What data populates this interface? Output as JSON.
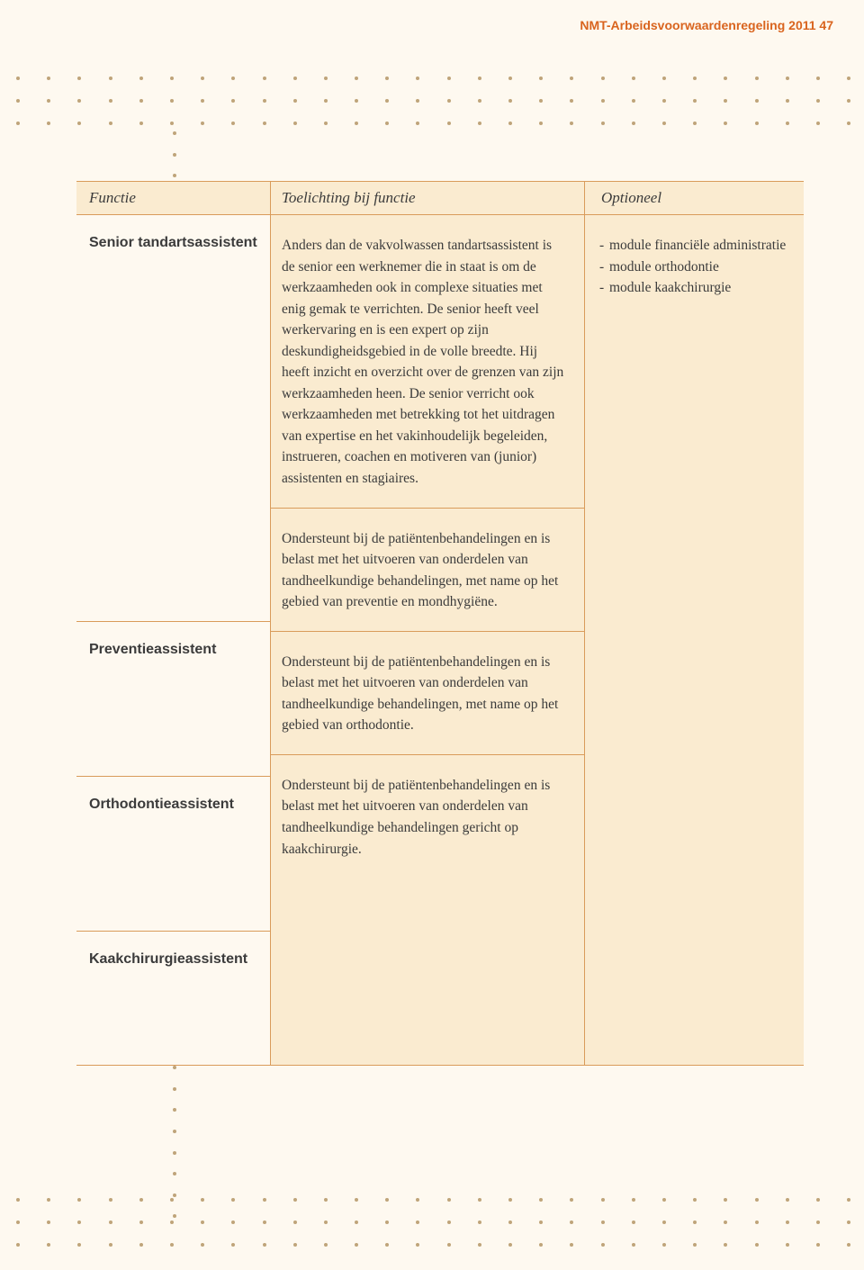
{
  "page_header": "NMT-Arbeidsvoorwaardenregeling 2011 47",
  "colors": {
    "page_bg": "#fef9f0",
    "cell_bg": "#faebd0",
    "border": "#d99b5a",
    "header_text": "#d9641e",
    "body_text": "#3b3b3b",
    "dot": "#bfa47a"
  },
  "dot_grid": {
    "rows": 3,
    "cols": 28,
    "bottom_rows": 3
  },
  "dot_vert_count": 52,
  "table": {
    "headers": {
      "functie": "Functie",
      "toelichting": "Toelichting bij functie",
      "optioneel": "Optioneel"
    },
    "rows": [
      {
        "functie": "Senior tandartsassistent",
        "toelichting": "Anders dan de vakvolwassen tandartsassistent is de senior een werknemer die in staat is om de werkzaamheden ook in complexe situaties met enig gemak te verrichten. De senior heeft veel werkervaring en is een expert op zijn deskundigheidsgebied in de volle breedte. Hij heeft inzicht en overzicht over de grenzen van zijn werkzaamheden heen. De senior verricht ook werkzaamheden met betrekking tot het uitdragen van expertise en het vakinhoudelijk begeleiden, instrueren, coachen en motiveren van (junior) assistenten en stagiaires.",
        "optioneel": [
          "module financiële administratie",
          "module orthodontie",
          "module kaakchirurgie"
        ]
      },
      {
        "functie": "Preventieassistent",
        "toelichting": "Ondersteunt bij de patiëntenbehandelingen en is belast met het uitvoeren van onderdelen van tandheelkundige behandelingen, met name op het gebied van preventie en mondhygiëne.",
        "optioneel": []
      },
      {
        "functie": "Orthodontieassistent",
        "toelichting": "Ondersteunt bij de patiëntenbehandelingen en is belast met het uitvoeren van onderdelen van tandheelkundige behandelingen, met name op het gebied van orthodontie.",
        "optioneel": []
      },
      {
        "functie": "Kaakchirurgieassistent",
        "toelichting": "Ondersteunt bij de patiëntenbehandelingen en is belast met het uitvoeren van onderdelen van tandheelkundige behandelingen gericht op kaakchirurgie.",
        "optioneel": []
      }
    ]
  }
}
